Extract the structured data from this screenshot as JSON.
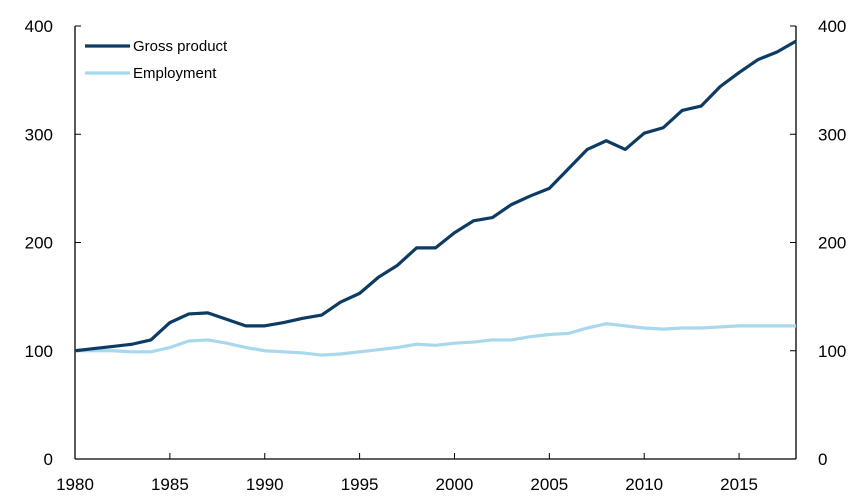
{
  "chart_data": {
    "type": "line",
    "title": "",
    "xlabel": "",
    "ylabel": "",
    "xlim": [
      1980,
      2018
    ],
    "ylim": [
      0,
      400
    ],
    "y2lim": [
      0,
      400
    ],
    "x_ticks": [
      1980,
      1985,
      1990,
      1995,
      2000,
      2005,
      2010,
      2015
    ],
    "y_ticks": [
      0,
      100,
      200,
      300,
      400
    ],
    "grid": false,
    "legend_position": "top-left",
    "x": [
      1980,
      1981,
      1982,
      1983,
      1984,
      1985,
      1986,
      1987,
      1988,
      1989,
      1990,
      1991,
      1992,
      1993,
      1994,
      1995,
      1996,
      1997,
      1998,
      1999,
      2000,
      2001,
      2002,
      2003,
      2004,
      2005,
      2006,
      2007,
      2008,
      2009,
      2010,
      2011,
      2012,
      2013,
      2014,
      2015,
      2016,
      2017,
      2018
    ],
    "series": [
      {
        "name": "Gross product",
        "color": "#0d3b63",
        "values": [
          100,
          102,
          104,
          106,
          110,
          126,
          134,
          135,
          129,
          123,
          123,
          126,
          130,
          133,
          145,
          153,
          168,
          179,
          195,
          195,
          209,
          220,
          223,
          235,
          243,
          250,
          268,
          286,
          294,
          286,
          301,
          306,
          322,
          326,
          344,
          357,
          369,
          376,
          386
        ]
      },
      {
        "name": "Employment",
        "color": "#a8d8ec",
        "values": [
          100,
          100,
          100,
          99,
          99,
          103,
          109,
          110,
          107,
          103,
          100,
          99,
          98,
          96,
          97,
          99,
          101,
          103,
          106,
          105,
          107,
          108,
          110,
          110,
          113,
          115,
          116,
          121,
          125,
          123,
          121,
          120,
          121,
          121,
          122,
          123,
          123,
          123,
          123
        ]
      }
    ]
  }
}
